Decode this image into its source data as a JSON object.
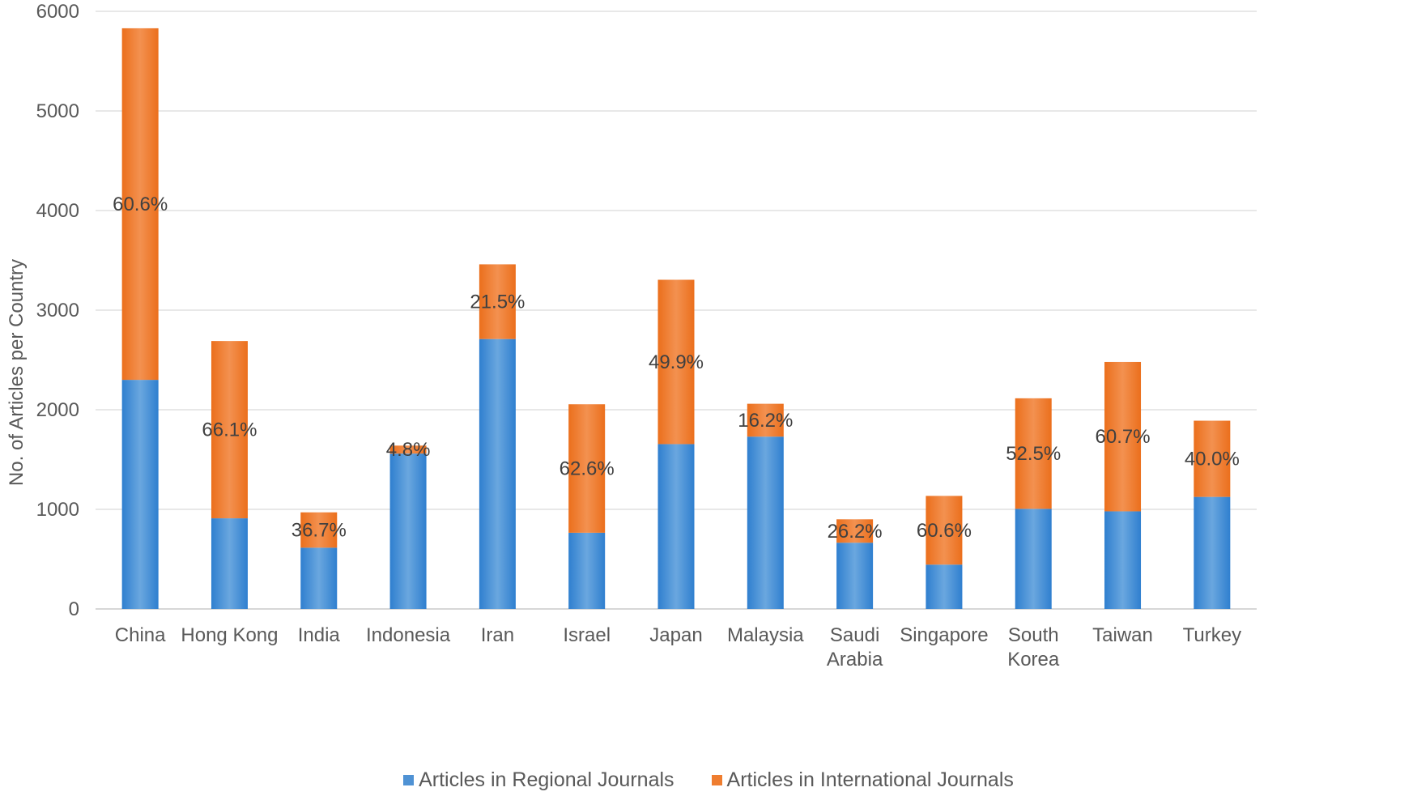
{
  "chart_data": {
    "type": "bar",
    "stacked": true,
    "title": "",
    "xlabel": "",
    "ylabel": "No. of Articles per Country",
    "ylim": [
      0,
      6000
    ],
    "yticks": [
      0,
      1000,
      2000,
      3000,
      4000,
      5000,
      6000
    ],
    "grid": true,
    "legend_position": "bottom",
    "categories": [
      [
        "China"
      ],
      [
        "Hong Kong"
      ],
      [
        "India"
      ],
      [
        "Indonesia"
      ],
      [
        "Iran"
      ],
      [
        "Israel"
      ],
      [
        "Japan"
      ],
      [
        "Malaysia"
      ],
      [
        "Saudi",
        "Arabia"
      ],
      [
        "Singapore"
      ],
      [
        "South",
        "Korea"
      ],
      [
        "Taiwan"
      ],
      [
        "Turkey"
      ]
    ],
    "series": [
      {
        "name": "Articles in Regional Journals",
        "color": "#4f92d4",
        "values": [
          2300,
          910,
          615,
          1560,
          2710,
          765,
          1655,
          1730,
          665,
          445,
          1005,
          980,
          1125
        ]
      },
      {
        "name": "Articles in International Journals",
        "color": "#ef7d2f",
        "values": [
          3530,
          1780,
          355,
          80,
          750,
          1290,
          1650,
          330,
          235,
          690,
          1110,
          1500,
          765
        ]
      }
    ],
    "data_labels": [
      "60.6%",
      "66.1%",
      "36.7%",
      "4.8%",
      "21.5%",
      "62.6%",
      "49.9%",
      "16.2%",
      "26.2%",
      "60.6%",
      "52.5%",
      "60.7%",
      "40.0%"
    ]
  }
}
